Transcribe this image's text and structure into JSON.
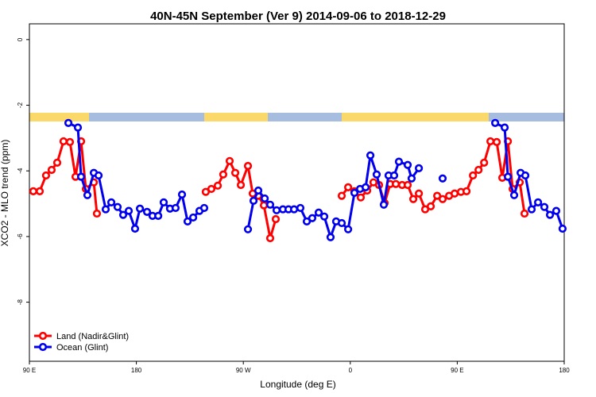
{
  "chart_data": {
    "type": "line",
    "title": "40N-45N September (Ver 9)   2014-09-06 to 2018-12-29",
    "x_label": "Longitude (deg E)",
    "y_label": "XCO2 - MLO trend (ppm)",
    "xlim": [
      90,
      540
    ],
    "xticks": [
      {
        "value": 90,
        "label": "90 E"
      },
      {
        "value": 180,
        "label": "180"
      },
      {
        "value": 270,
        "label": "90 W"
      },
      {
        "value": 360,
        "label": "0"
      },
      {
        "value": 450,
        "label": "90 E"
      },
      {
        "value": 540,
        "label": "180"
      }
    ],
    "ylim": [
      -9.8,
      0.48
    ],
    "yticks": [
      -8,
      -6,
      -4,
      -2,
      0
    ],
    "legend": "bottom-left",
    "series": [
      {
        "name": "Land (Nadir&Glint)",
        "color": "#ff0000",
        "x": [
          93.3,
          98.7,
          104,
          108.7,
          113.4,
          118.7,
          124.1,
          128.8,
          133.5,
          137.5,
          144.2,
          146.8,
          null,
          238.4,
          243.1,
          248.5,
          253.1,
          258.5,
          263.2,
          267.9,
          273.9,
          277.9,
          282.6,
          287.3,
          292.6,
          297.3,
          null,
          352.8,
          358.2,
          363.5,
          368.8,
          374.2,
          379.5,
          384.2,
          388.9,
          393.6,
          398.3,
          403.6,
          408.3,
          413,
          417.7,
          423,
          427.7,
          433.1,
          437.7,
          443.1,
          447.8,
          453.1,
          457.8,
          463.2,
          467.9,
          472.6,
          477.9,
          483.2,
          487.9,
          492.6,
          496.6,
          502.6,
          506.6
        ],
        "values": [
          -4.62,
          -4.62,
          -4.14,
          -3.97,
          -3.75,
          -3.1,
          -3.12,
          -4.18,
          -3.1,
          -4.55,
          -4.35,
          -5.3,
          null,
          -4.64,
          -4.55,
          -4.45,
          -4.11,
          -3.7,
          -4.06,
          -4.43,
          -3.85,
          -4.69,
          -4.76,
          -5.05,
          -6.05,
          -5.47,
          null,
          -4.76,
          -4.5,
          -4.62,
          -4.81,
          -4.6,
          -4.35,
          -4.43,
          -4.98,
          -4.4,
          -4.4,
          -4.43,
          -4.43,
          -4.86,
          -4.69,
          -5.17,
          -5.08,
          -4.76,
          -4.86,
          -4.76,
          -4.69,
          -4.64,
          -4.62,
          -4.14,
          -3.97,
          -3.75,
          -3.1,
          -3.12,
          -4.21,
          -3.1,
          -4.55,
          -4.35,
          -5.3
        ]
      },
      {
        "name": "Ocean (Glint)",
        "color": "#0000ee",
        "x": [
          122.8,
          130.8,
          133.5,
          138.8,
          144.2,
          148.2,
          154.2,
          158.9,
          164.2,
          168.9,
          173.6,
          178.9,
          183,
          189,
          193.6,
          198.4,
          203,
          208.3,
          213,
          218.4,
          223.1,
          227.8,
          233.1,
          237.1,
          null,
          273.9,
          278.6,
          282.6,
          288,
          292.6,
          298,
          303.3,
          308,
          312.7,
          318,
          323.4,
          328,
          333.4,
          338.1,
          343.4,
          348.1,
          352.8,
          358.2,
          363.5,
          368.2,
          372.9,
          376.9,
          382.2,
          388.2,
          392.2,
          396.9,
          400.9,
          408.3,
          411.6,
          417.7,
          null,
          437.7,
          null,
          481.9,
          489.9,
          492.6,
          497.9,
          503.3,
          507.3,
          512.6,
          518,
          523.3,
          528,
          533.3,
          538.6
        ],
        "values": [
          -2.54,
          -2.68,
          -4.18,
          -4.74,
          -4.06,
          -4.14,
          -5.17,
          -4.96,
          -5.1,
          -5.34,
          -5.22,
          -5.76,
          -5.15,
          -5.25,
          -5.37,
          -5.37,
          -4.96,
          -5.15,
          -5.13,
          -4.72,
          -5.54,
          -5.42,
          -5.22,
          -5.13,
          null,
          -5.78,
          -4.91,
          -4.6,
          -4.84,
          -5.03,
          -5.2,
          -5.17,
          -5.17,
          -5.17,
          -5.13,
          -5.54,
          -5.44,
          -5.27,
          -5.39,
          -6.02,
          -5.54,
          -5.59,
          -5.78,
          -4.67,
          -4.55,
          -4.5,
          -3.53,
          -4.11,
          -5.03,
          -4.14,
          -4.14,
          -3.72,
          -3.82,
          -4.23,
          -3.92,
          null,
          -4.23,
          null,
          -2.54,
          -2.68,
          -4.18,
          -4.74,
          -4.06,
          -4.14,
          -5.17,
          -4.96,
          -5.1,
          -5.34,
          -5.22,
          -5.76
        ]
      }
    ]
  }
}
